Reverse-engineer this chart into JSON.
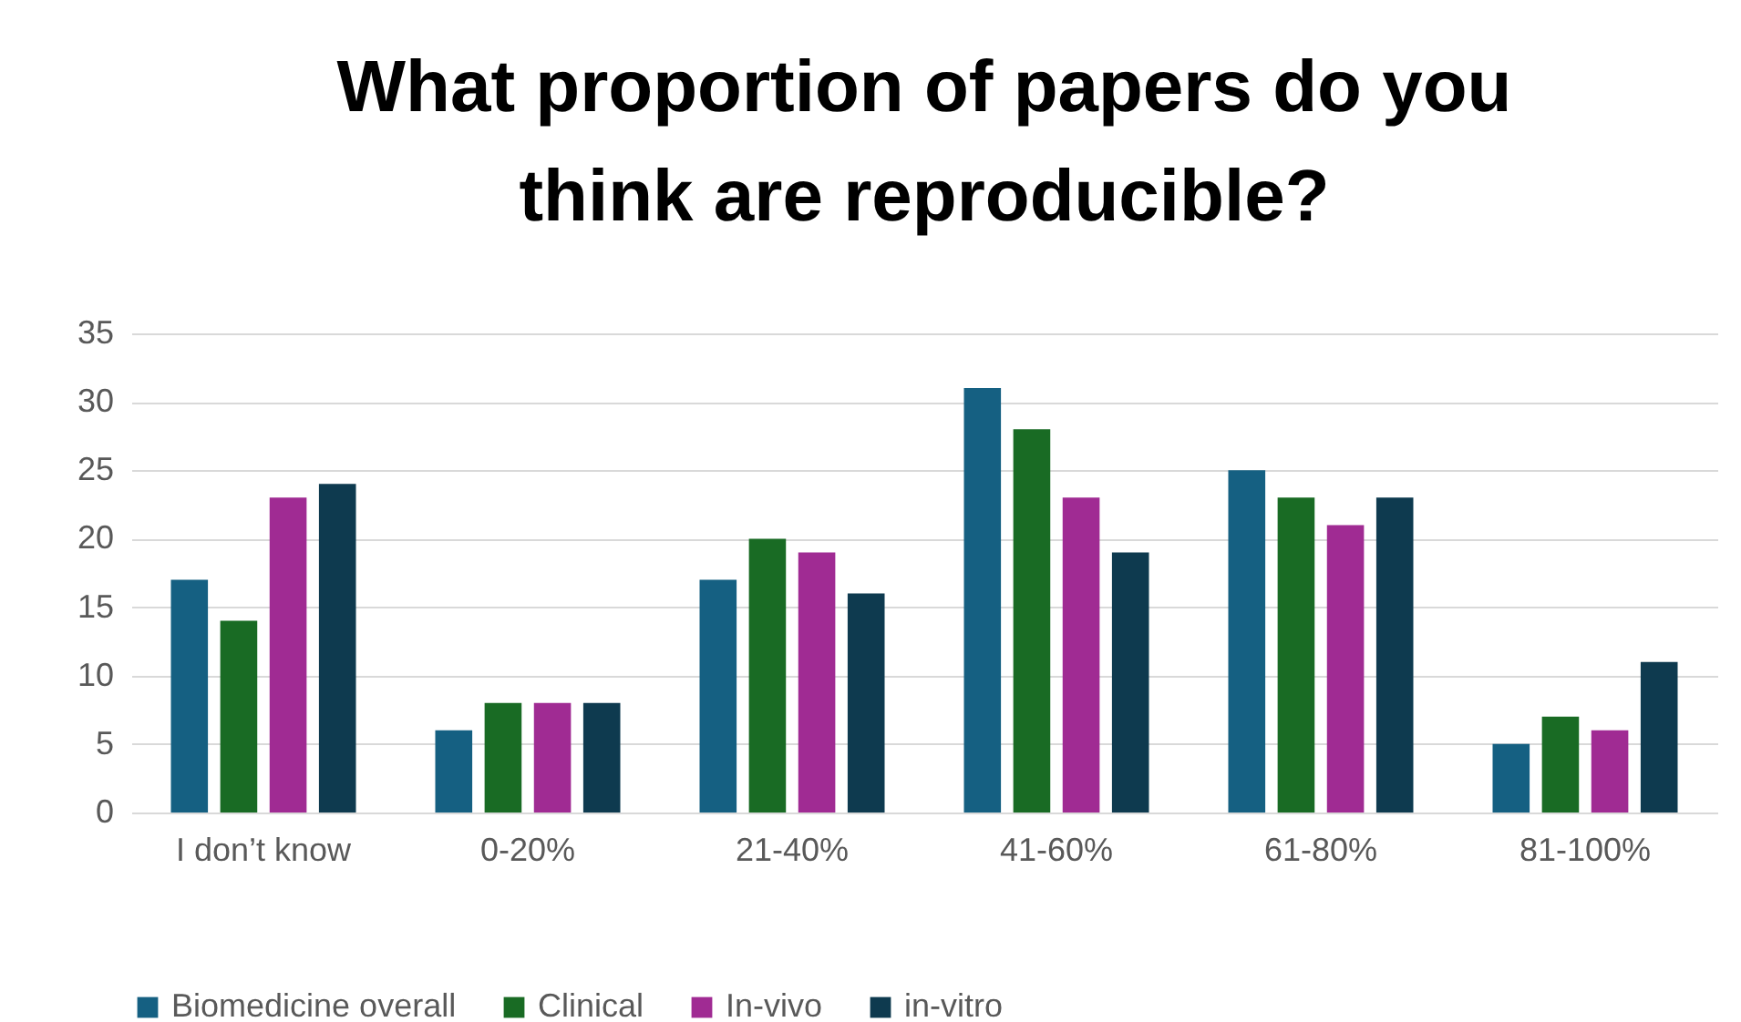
{
  "chart_data": {
    "type": "bar",
    "title": "What proportion of papers do you think are reproducible?",
    "categories": [
      "I don’t know",
      "0-20%",
      "21-40%",
      "41-60%",
      "61-80%",
      "81-100%"
    ],
    "series": [
      {
        "name": "Biomedicine overall",
        "color": "#156082",
        "values": [
          17,
          6,
          17,
          31,
          25,
          5
        ]
      },
      {
        "name": "Clinical",
        "color": "#196b24",
        "values": [
          14,
          8,
          20,
          28,
          23,
          7
        ]
      },
      {
        "name": "In-vivo",
        "color": "#a02b93",
        "values": [
          23,
          8,
          19,
          23,
          21,
          6
        ]
      },
      {
        "name": "in-vitro",
        "color": "#0e3a4f",
        "values": [
          24,
          8,
          16,
          19,
          23,
          11
        ]
      }
    ],
    "ylim": [
      0,
      35
    ],
    "yticks": [
      0,
      5,
      10,
      15,
      20,
      25,
      30,
      35
    ],
    "grid": "y",
    "legend": "bottom"
  }
}
